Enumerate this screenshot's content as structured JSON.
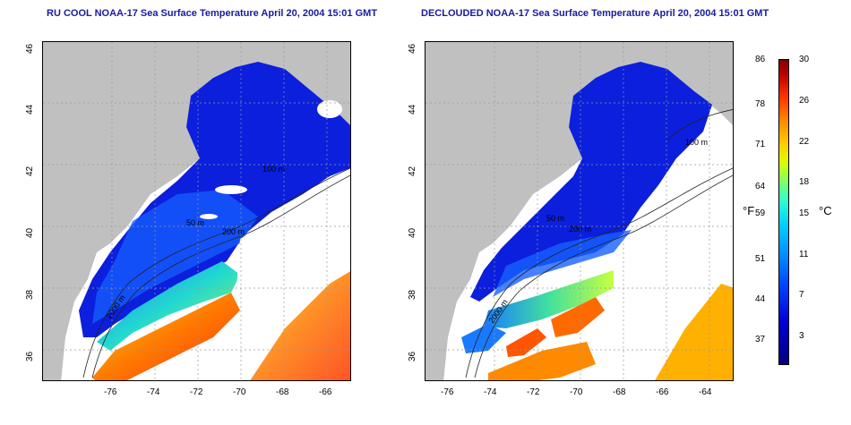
{
  "titles": {
    "left": "RU COOL NOAA-17 Sea Surface Temperature April 20, 2004 15:01 GMT",
    "right": "DECLOUDED NOAA-17 Sea Surface Temperature April 20, 2004 15:01 GMT"
  },
  "axes": {
    "lon_ticks": [
      "-76",
      "-74",
      "-72",
      "-70",
      "-68",
      "-66",
      "-64"
    ],
    "lat_ticks": [
      "46",
      "44",
      "42",
      "40",
      "38",
      "36"
    ]
  },
  "contour_labels": {
    "left": [
      "200 m",
      "100 m",
      "50 m",
      "2000 m"
    ],
    "right": [
      "100 m",
      "200 m",
      "50 m",
      "2000 m"
    ]
  },
  "colorbar": {
    "fahrenheit_ticks": [
      "86",
      "78",
      "71",
      "64",
      "59",
      "51",
      "44",
      "37"
    ],
    "celsius_ticks": [
      "30",
      "26",
      "22",
      "18",
      "15",
      "11",
      "7",
      "3"
    ],
    "unit_f": "°F",
    "unit_c": "°C"
  },
  "colors": {
    "land": "#c0c0c0",
    "cold": "#0000cc",
    "warm": "#ff5500",
    "title": "#1a1aa0"
  }
}
